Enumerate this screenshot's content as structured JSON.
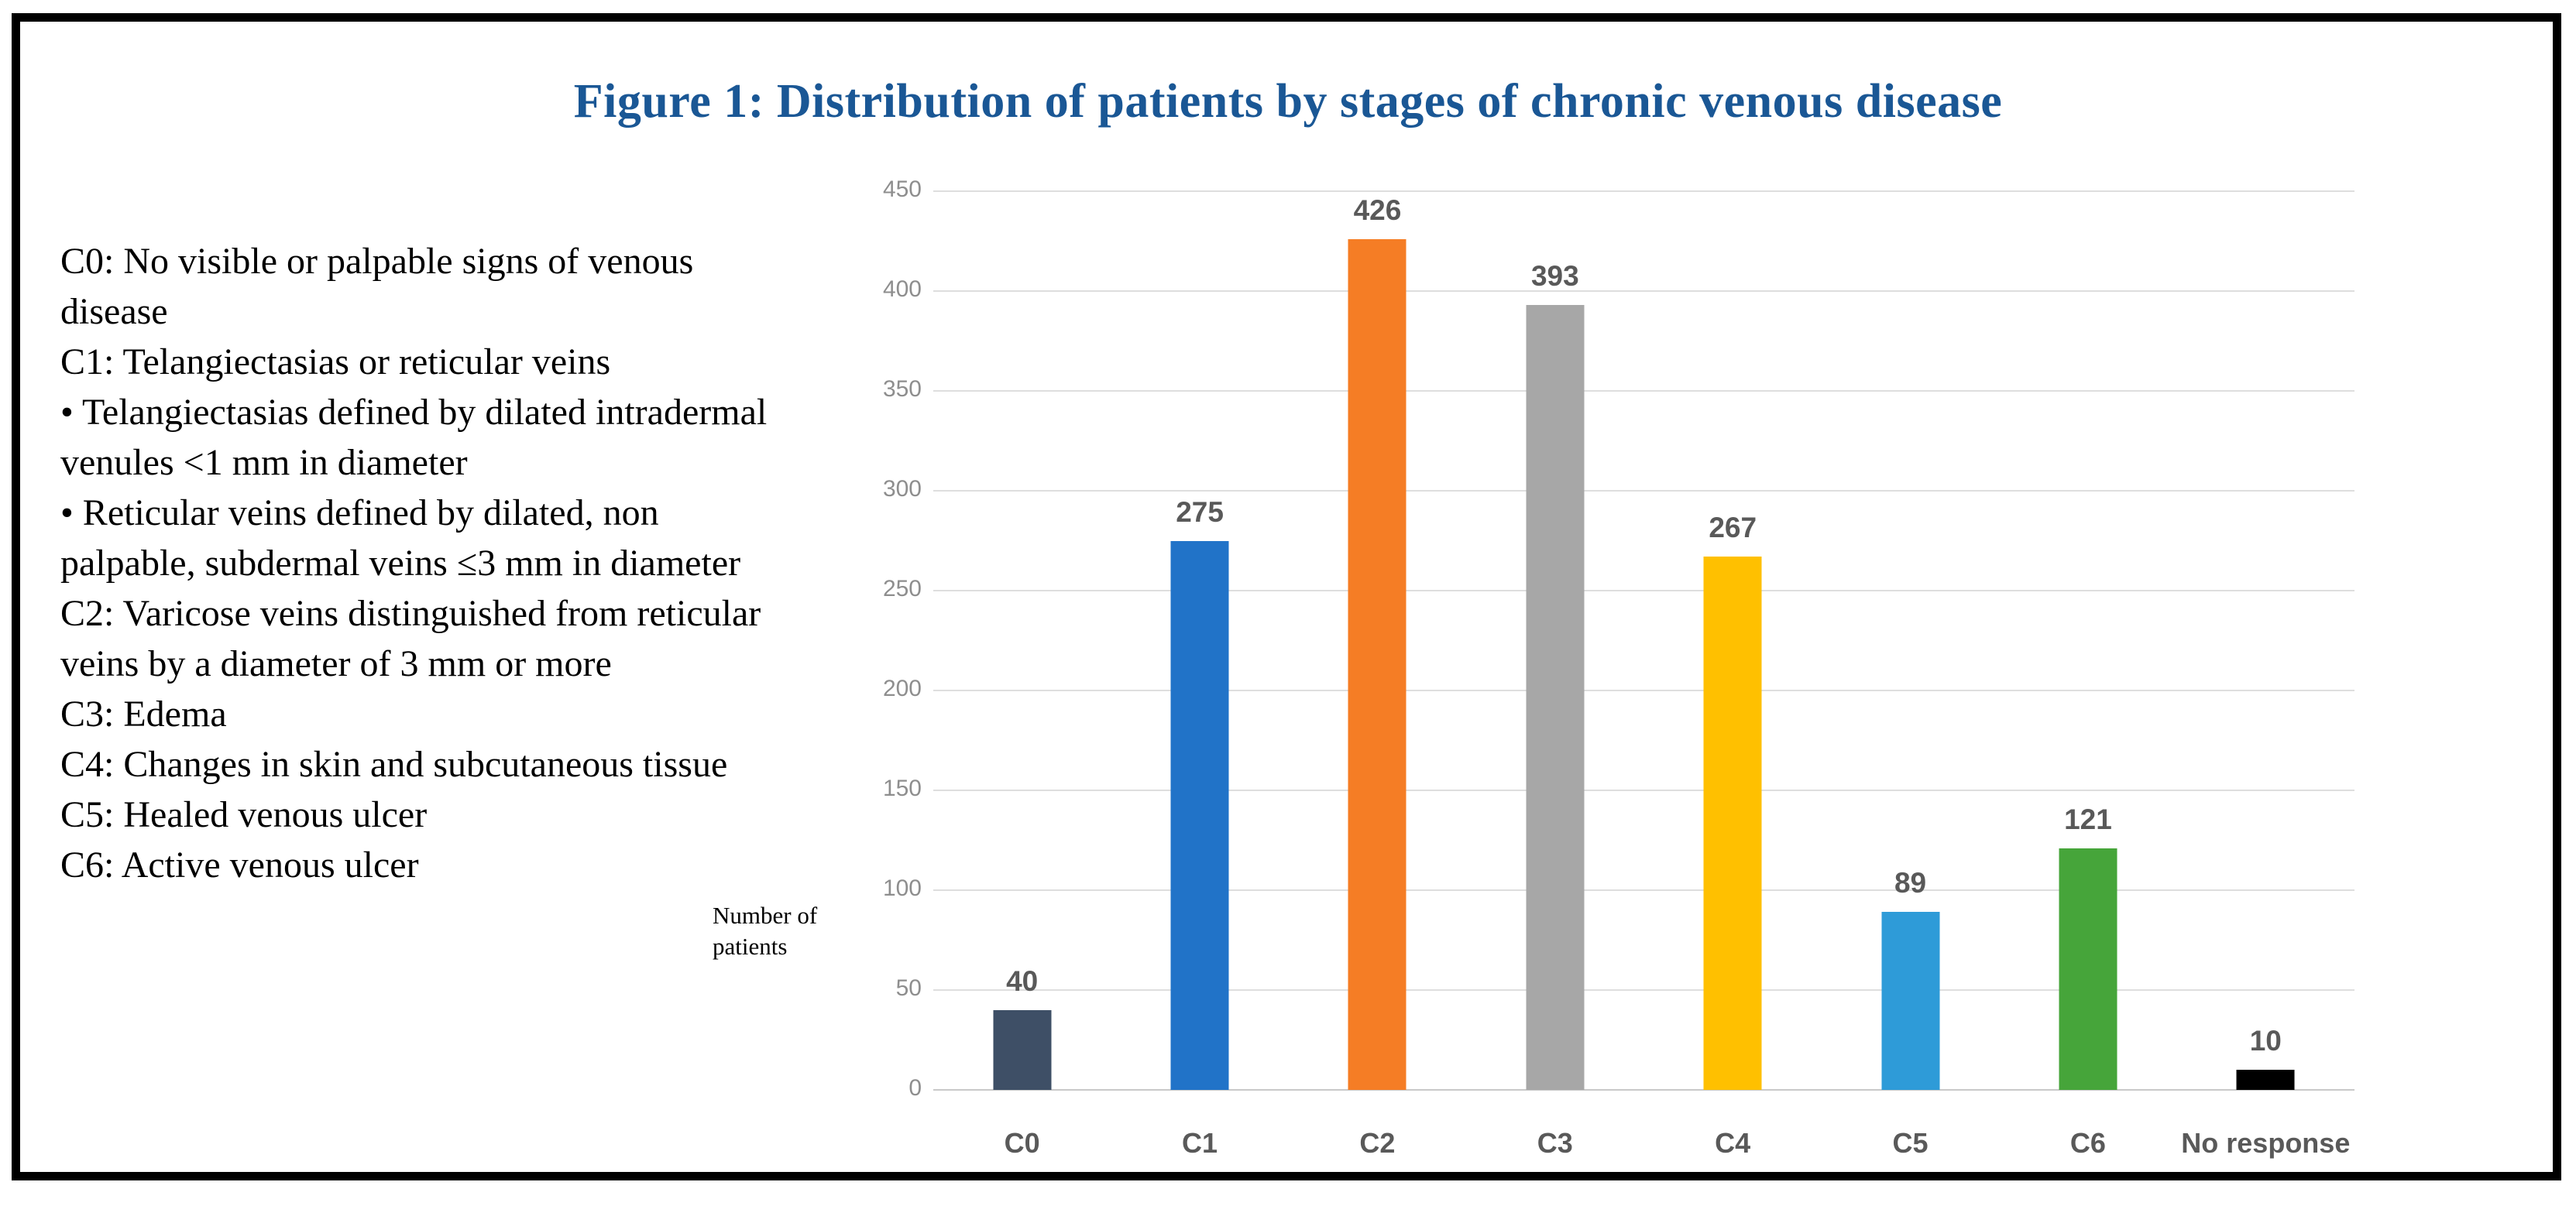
{
  "figure_title": {
    "text": "Figure 1: Distribution of patients by stages of chronic venous disease",
    "color": "#1A5795"
  },
  "descriptions": {
    "lines": [
      "C0: No visible or palpable signs of venous",
      "disease",
      "C1: Telangiectasias or reticular veins",
      "• Telangiectasias defined by dilated intradermal",
      "venules <1 mm in diameter",
      "• Reticular veins defined by dilated, non",
      "palpable, subdermal veins ≤3 mm in diameter",
      "C2: Varicose veins distinguished from reticular",
      "veins by a diameter of 3 mm or more",
      "C3: Edema",
      "C4: Changes in skin and subcutaneous tissue",
      "C5: Healed venous ulcer",
      "C6: Active venous ulcer"
    ]
  },
  "y_axis_title": {
    "line1": "Number of",
    "line2": "patients"
  },
  "chart_data": {
    "type": "bar",
    "title": "Figure 1: Distribution of patients by stages of chronic venous disease",
    "categories": [
      "C0",
      "C1",
      "C2",
      "C3",
      "C4",
      "C5",
      "C6",
      "No response"
    ],
    "values": [
      40,
      275,
      426,
      393,
      267,
      89,
      121,
      10
    ],
    "bar_colors": [
      "#3E4F66",
      "#2173C8",
      "#F57D25",
      "#A7A7A7",
      "#FFC000",
      "#2E9BD8",
      "#46A53A",
      "#000000"
    ],
    "xlabel": "",
    "ylabel": "Number of patients",
    "ylim": [
      0,
      450
    ],
    "yticks": [
      0,
      50,
      100,
      150,
      200,
      250,
      300,
      350,
      400,
      450
    ],
    "grid": true,
    "legend_position": "none",
    "grid_color": "#DEDEDE",
    "axis_line_color": "#C9C9C9",
    "tick_label_color": "#8E8E8E",
    "value_label_color": "#595959",
    "category_label_color": "#595959"
  }
}
